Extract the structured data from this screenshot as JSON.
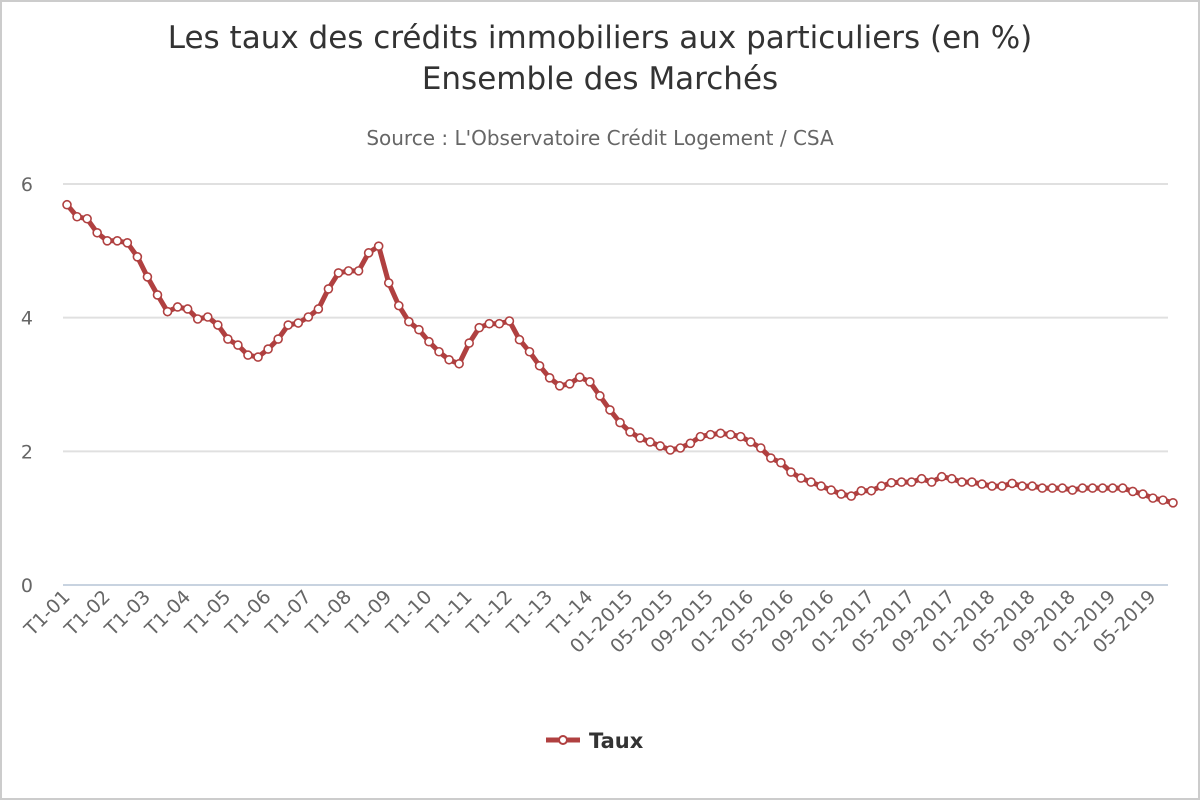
{
  "chart_data": {
    "type": "line",
    "title_line1": "Les taux des crédits immobiliers aux particuliers (en %)",
    "title_line2": "Ensemble des Marchés",
    "subtitle": "Source : L'Observatoire Crédit Logement / CSA",
    "xlabel": "",
    "ylabel": "",
    "ylim": [
      0,
      6
    ],
    "yticks": [
      "0",
      "2",
      "4",
      "6"
    ],
    "grid": true,
    "legend_position": "bottom",
    "label_every": 4,
    "categories": [
      "T1-01",
      "T2-01",
      "T3-01",
      "T4-01",
      "T1-02",
      "T2-02",
      "T3-02",
      "T4-02",
      "T1-03",
      "T2-03",
      "T3-03",
      "T4-03",
      "T1-04",
      "T2-04",
      "T3-04",
      "T4-04",
      "T1-05",
      "T2-05",
      "T3-05",
      "T4-05",
      "T1-06",
      "T2-06",
      "T3-06",
      "T4-06",
      "T1-07",
      "T2-07",
      "T3-07",
      "T4-07",
      "T1-08",
      "T2-08",
      "T3-08",
      "T4-08",
      "T1-09",
      "T2-09",
      "T3-09",
      "T4-09",
      "T1-10",
      "T2-10",
      "T3-10",
      "T4-10",
      "T1-11",
      "T2-11",
      "T3-11",
      "T4-11",
      "T1-12",
      "T2-12",
      "T3-12",
      "T4-12",
      "T1-13",
      "T2-13",
      "T3-13",
      "T4-13",
      "T1-14",
      "T2-14",
      "T3-14",
      "T4-14",
      "01-2015",
      "02-2015",
      "03-2015",
      "04-2015",
      "05-2015",
      "06-2015",
      "07-2015",
      "08-2015",
      "09-2015",
      "10-2015",
      "11-2015",
      "12-2015",
      "01-2016",
      "02-2016",
      "03-2016",
      "04-2016",
      "05-2016",
      "06-2016",
      "07-2016",
      "08-2016",
      "09-2016",
      "10-2016",
      "11-2016",
      "12-2016",
      "01-2017",
      "02-2017",
      "03-2017",
      "04-2017",
      "05-2017",
      "06-2017",
      "07-2017",
      "08-2017",
      "09-2017",
      "10-2017",
      "11-2017",
      "12-2017",
      "01-2018",
      "02-2018",
      "03-2018",
      "04-2018",
      "05-2018",
      "06-2018",
      "07-2018",
      "08-2018",
      "09-2018",
      "10-2018",
      "11-2018",
      "12-2018",
      "01-2019",
      "02-2019",
      "03-2019",
      "04-2019",
      "05-2019",
      "06-2019",
      "07-2019"
    ],
    "series": [
      {
        "name": "Taux",
        "color": "#b04040",
        "values": [
          5.69,
          5.51,
          5.48,
          5.27,
          5.15,
          5.15,
          5.12,
          4.91,
          4.61,
          4.34,
          4.09,
          4.16,
          4.13,
          3.98,
          4.01,
          3.89,
          3.68,
          3.59,
          3.44,
          3.41,
          3.53,
          3.68,
          3.89,
          3.92,
          4.01,
          4.13,
          4.43,
          4.67,
          4.7,
          4.7,
          4.97,
          5.07,
          4.52,
          4.18,
          3.94,
          3.82,
          3.64,
          3.49,
          3.37,
          3.31,
          3.62,
          3.85,
          3.91,
          3.91,
          3.95,
          3.67,
          3.49,
          3.28,
          3.1,
          2.98,
          3.01,
          3.11,
          3.04,
          2.83,
          2.62,
          2.43,
          2.29,
          2.2,
          2.14,
          2.08,
          2.02,
          2.05,
          2.12,
          2.22,
          2.25,
          2.27,
          2.25,
          2.22,
          2.14,
          2.05,
          1.9,
          1.83,
          1.69,
          1.6,
          1.54,
          1.48,
          1.42,
          1.36,
          1.33,
          1.41,
          1.41,
          1.48,
          1.53,
          1.54,
          1.54,
          1.59,
          1.54,
          1.62,
          1.59,
          1.54,
          1.54,
          1.51,
          1.48,
          1.48,
          1.52,
          1.48,
          1.48,
          1.45,
          1.45,
          1.45,
          1.42,
          1.45,
          1.45,
          1.45,
          1.45,
          1.45,
          1.4,
          1.36,
          1.3,
          1.27,
          1.23
        ]
      }
    ]
  }
}
